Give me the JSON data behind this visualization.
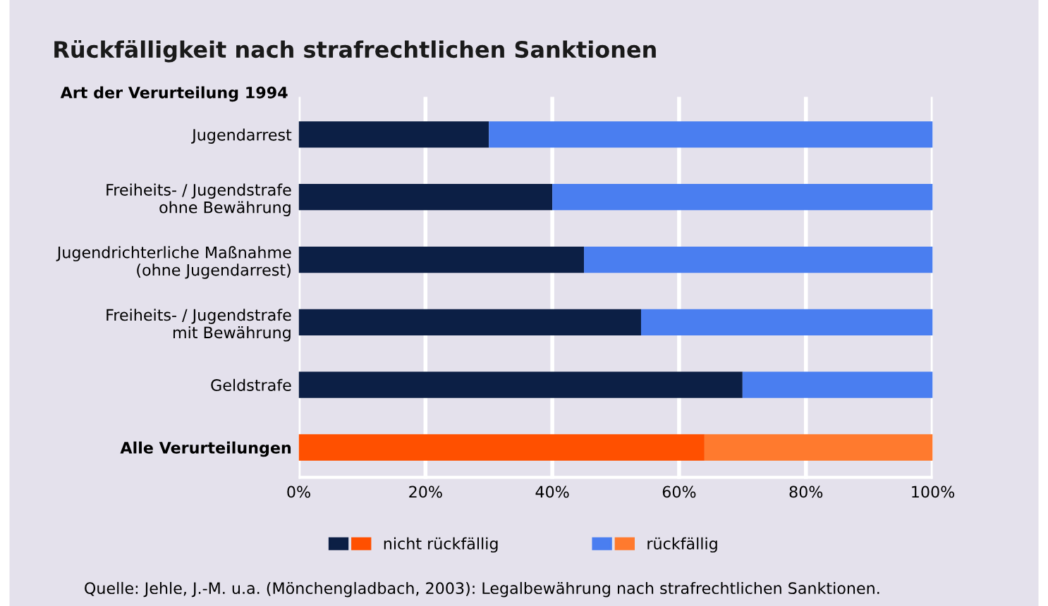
{
  "chart_data": {
    "type": "bar",
    "orientation": "horizontal",
    "stacked": true,
    "title": "Rückfälligkeit nach strafrechtlichen Sanktionen",
    "ylabel": "Art der Verurteilung 1994",
    "categories": [
      "Jugendarrest",
      "Freiheits- / Jugendstrafe\nohne Bewährung",
      "Jugendrichterliche Maßnahme\n(ohne Jugendarrest)",
      "Freiheits- / Jugendstrafe\nmit Bewährung",
      "Geldstrafe",
      "Alle Verurteilungen"
    ],
    "series": [
      {
        "name": "nicht rückfällig",
        "colors": [
          "#0c1f45",
          "#0c1f45",
          "#0c1f45",
          "#0c1f45",
          "#0c1f45",
          "#ff5000"
        ],
        "values": [
          30,
          40,
          45,
          54,
          70,
          64
        ]
      },
      {
        "name": "rückfällig",
        "colors": [
          "#4a7ef0",
          "#4a7ef0",
          "#4a7ef0",
          "#4a7ef0",
          "#4a7ef0",
          "#ff7a2e"
        ],
        "values": [
          70,
          60,
          55,
          46,
          30,
          36
        ]
      }
    ],
    "xlim": [
      0,
      100
    ],
    "xticks": [
      {
        "value": 0,
        "label": "0%"
      },
      {
        "value": 20,
        "label": "20%"
      },
      {
        "value": 40,
        "label": "40%"
      },
      {
        "value": 60,
        "label": "60%"
      },
      {
        "value": 80,
        "label": "80%"
      },
      {
        "value": 100,
        "label": "100%"
      }
    ],
    "grid": "x",
    "legend": "bottom",
    "annotations": [
      "Quelle: Jehle, J.-M. u.a. (Mönchengladbach, 2003): Legalbewährung nach strafrechtlichen Sanktionen."
    ]
  }
}
